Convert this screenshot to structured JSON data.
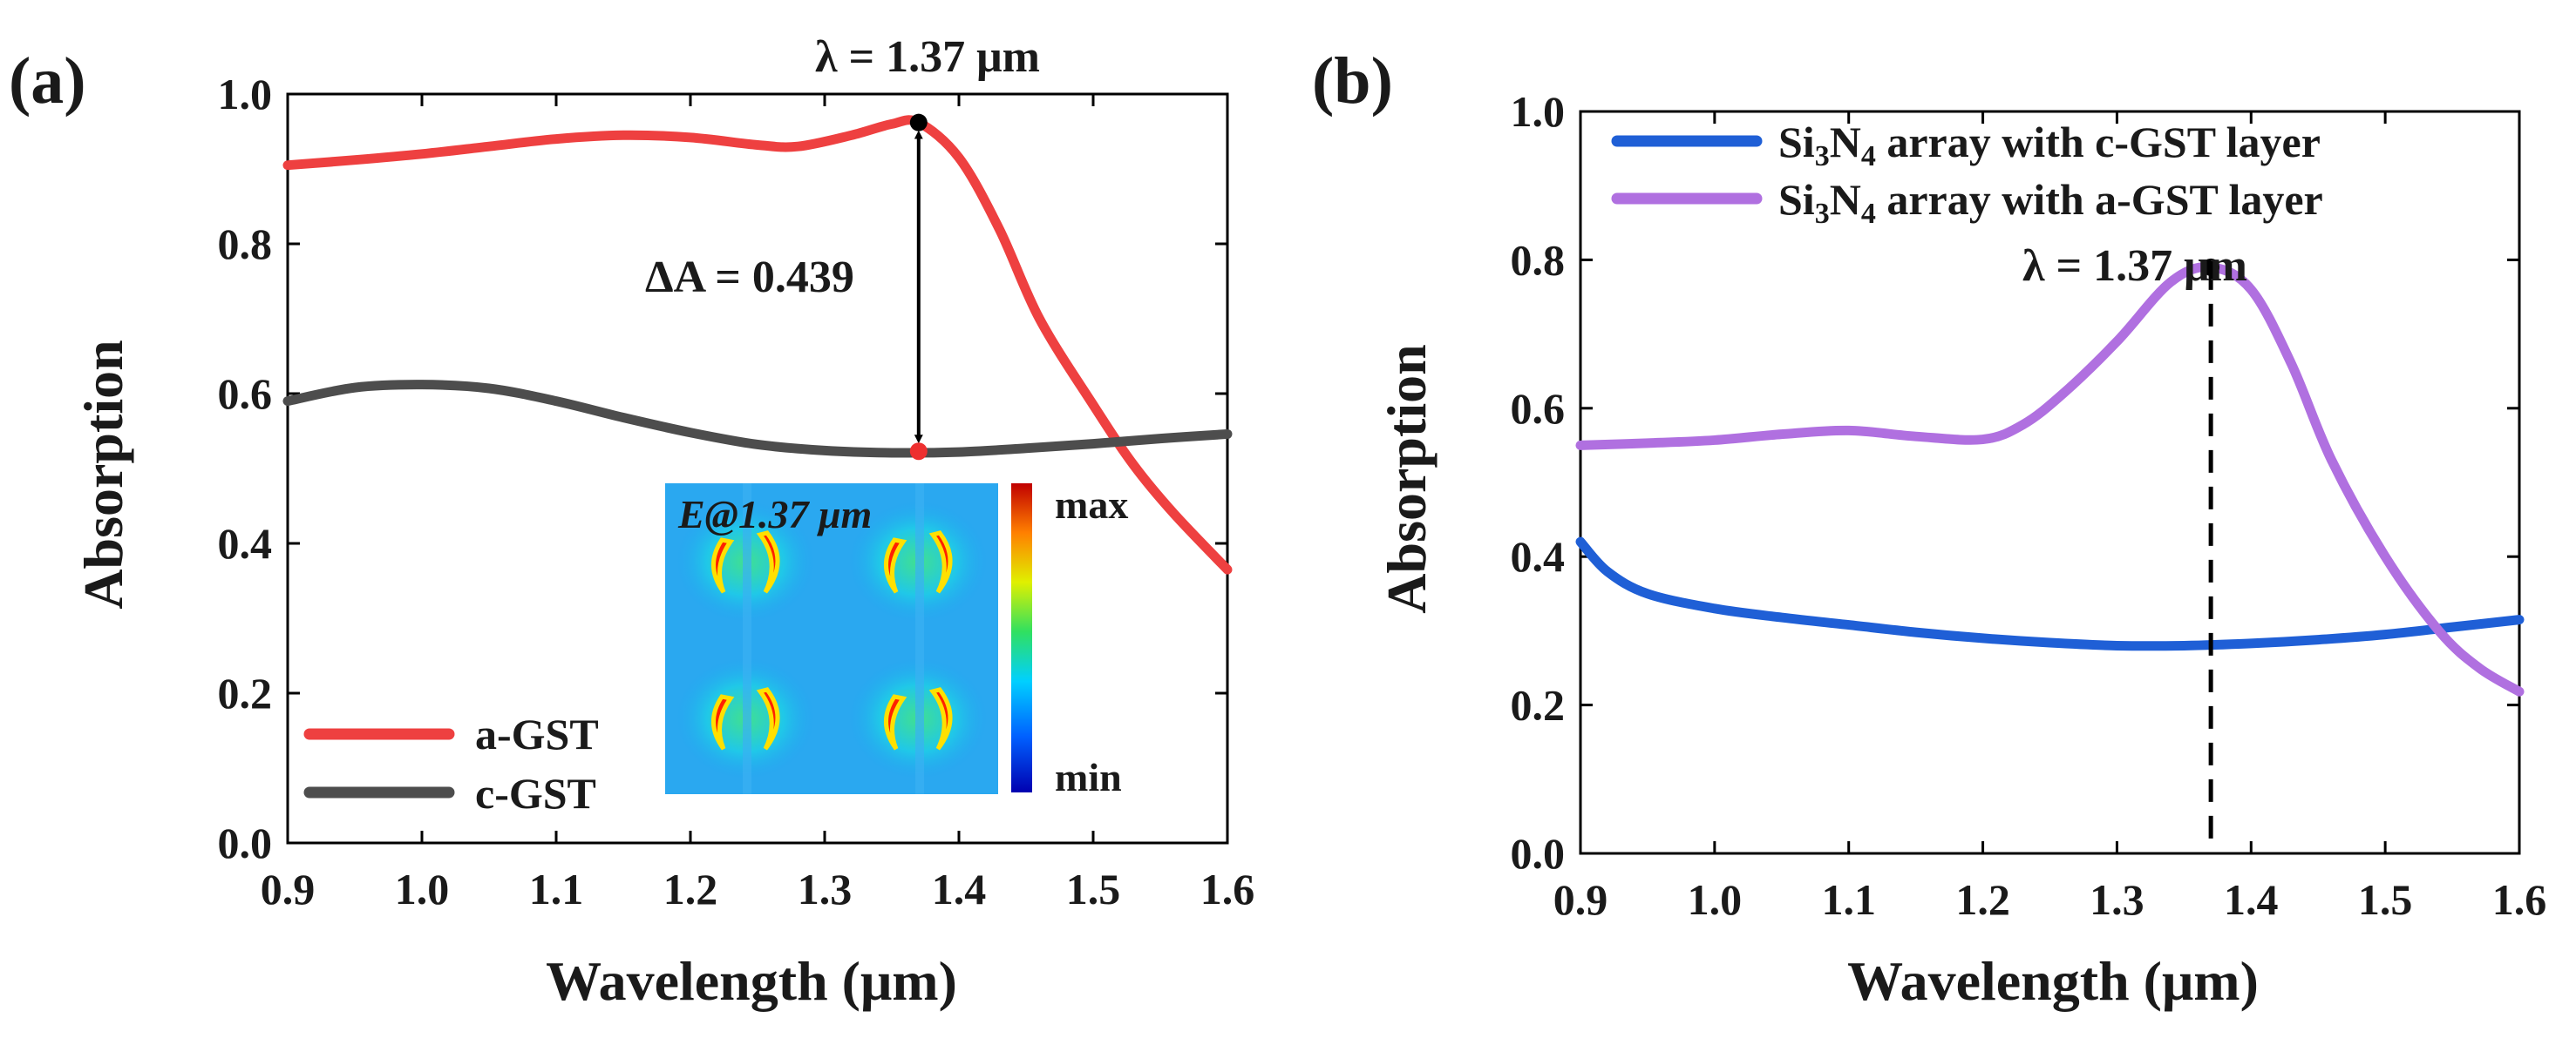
{
  "chart_data": [
    {
      "panel": "(a)",
      "type": "line",
      "xlabel": "Wavelength (μm)",
      "ylabel": "Absorption",
      "xlim": [
        0.9,
        1.6
      ],
      "ylim": [
        0.0,
        1.0
      ],
      "xticks": [
        "0.9",
        "1.0",
        "1.1",
        "1.2",
        "1.3",
        "1.4",
        "1.5",
        "1.6"
      ],
      "yticks": [
        "0.0",
        "0.2",
        "0.4",
        "0.6",
        "0.8",
        "1.0"
      ],
      "legend_position": "bottom-left",
      "series": [
        {
          "name": "a-GST",
          "color": "#ee4040",
          "x": [
            0.9,
            0.95,
            1.0,
            1.05,
            1.1,
            1.15,
            1.2,
            1.25,
            1.28,
            1.32,
            1.35,
            1.37,
            1.4,
            1.43,
            1.46,
            1.5,
            1.53,
            1.56,
            1.6
          ],
          "y": [
            0.905,
            0.912,
            0.92,
            0.93,
            0.94,
            0.945,
            0.942,
            0.932,
            0.93,
            0.945,
            0.96,
            0.962,
            0.915,
            0.82,
            0.7,
            0.585,
            0.505,
            0.44,
            0.365
          ]
        },
        {
          "name": "c-GST",
          "color": "#4d4d4d",
          "x": [
            0.9,
            0.95,
            1.0,
            1.05,
            1.1,
            1.15,
            1.2,
            1.25,
            1.3,
            1.35,
            1.4,
            1.45,
            1.5,
            1.55,
            1.6
          ],
          "y": [
            0.59,
            0.608,
            0.612,
            0.607,
            0.59,
            0.568,
            0.548,
            0.532,
            0.524,
            0.521,
            0.522,
            0.527,
            0.533,
            0.54,
            0.546
          ]
        }
      ],
      "annotations": {
        "lambda_label": "λ = 1.37 μm",
        "delta_label": "ΔA = 0.439",
        "marker_x": 1.37,
        "marker_top": 0.962,
        "marker_bottom": 0.523
      },
      "inset": {
        "title": "E@1.37 μm",
        "colorbar_max": "max",
        "colorbar_min": "min"
      }
    },
    {
      "panel": "(b)",
      "type": "line",
      "xlabel": "Wavelength (μm)",
      "ylabel": "Absorption",
      "xlim": [
        0.9,
        1.6
      ],
      "ylim": [
        0.0,
        1.0
      ],
      "xticks": [
        "0.9",
        "1.0",
        "1.1",
        "1.2",
        "1.3",
        "1.4",
        "1.5",
        "1.6"
      ],
      "yticks": [
        "0.0",
        "0.2",
        "0.4",
        "0.6",
        "0.8",
        "1.0"
      ],
      "legend_position": "top-left",
      "series": [
        {
          "name": "Si3N4 array with c-GST layer",
          "legend_main": "Si",
          "legend_sub1": "3",
          "legend_mid": "N",
          "legend_sub2": "4",
          "legend_rest": " array with c-GST layer",
          "color": "#1f5fd6",
          "x": [
            0.9,
            0.92,
            0.95,
            1.0,
            1.05,
            1.1,
            1.15,
            1.2,
            1.25,
            1.3,
            1.35,
            1.4,
            1.45,
            1.5,
            1.55,
            1.6
          ],
          "y": [
            0.42,
            0.38,
            0.35,
            0.33,
            0.318,
            0.308,
            0.298,
            0.29,
            0.284,
            0.28,
            0.28,
            0.283,
            0.288,
            0.295,
            0.305,
            0.315
          ]
        },
        {
          "name": "Si3N4 array with a-GST layer",
          "legend_main": "Si",
          "legend_sub1": "3",
          "legend_mid": "N",
          "legend_sub2": "4",
          "legend_rest": " array with a-GST layer",
          "color": "#b070e0",
          "x": [
            0.9,
            0.95,
            1.0,
            1.05,
            1.1,
            1.15,
            1.2,
            1.23,
            1.26,
            1.3,
            1.34,
            1.37,
            1.4,
            1.43,
            1.46,
            1.5,
            1.54,
            1.57,
            1.6
          ],
          "y": [
            0.55,
            0.553,
            0.557,
            0.565,
            0.57,
            0.562,
            0.558,
            0.578,
            0.62,
            0.69,
            0.77,
            0.79,
            0.76,
            0.66,
            0.53,
            0.4,
            0.3,
            0.25,
            0.218
          ]
        }
      ],
      "annotations": {
        "lambda_label": "λ = 1.37 μm",
        "marker_x": 1.37,
        "marker_y": 0.79
      }
    }
  ]
}
